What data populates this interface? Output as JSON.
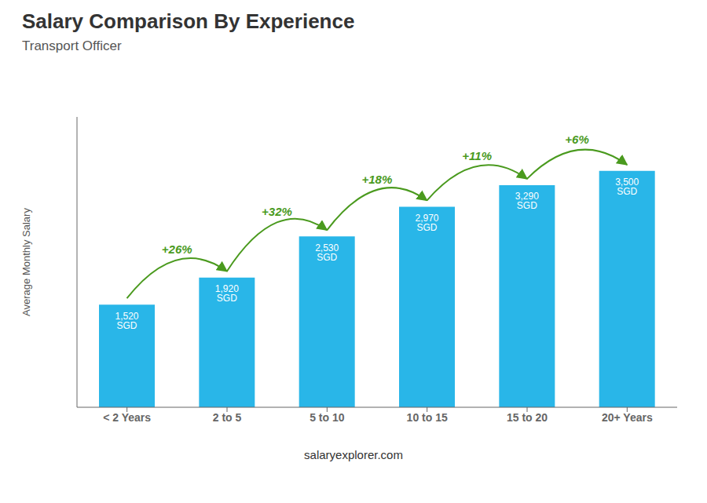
{
  "chart_data": {
    "type": "bar",
    "title": "Salary Comparison By Experience",
    "subtitle": "Transport Officer",
    "ylabel": "Average Monthly Salary",
    "categories": [
      "< 2 Years",
      "2 to 5",
      "5 to 10",
      "10 to 15",
      "15 to 20",
      "20+ Years"
    ],
    "values": [
      1520,
      1920,
      2530,
      2970,
      3290,
      3500
    ],
    "value_labels": [
      "1,520 SGD",
      "1,920 SGD",
      "2,530 SGD",
      "2,970 SGD",
      "3,290 SGD",
      "3,500 SGD"
    ],
    "data_labels": true,
    "color": "#29B6E8",
    "ylim": [
      0,
      4300
    ],
    "tick_labels": "x",
    "grid": false,
    "annotations": [
      "+26%",
      "+32%",
      "+18%",
      "+11%",
      "+6%"
    ],
    "footer": "salaryexplorer.com"
  }
}
